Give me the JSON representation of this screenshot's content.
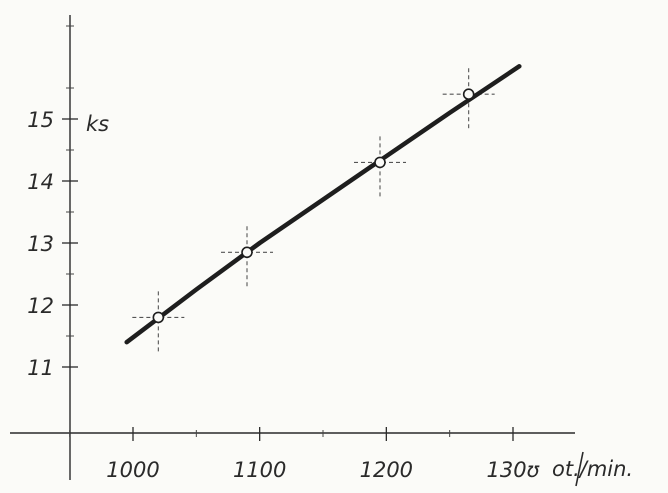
{
  "chart_data": {
    "type": "line",
    "title": "",
    "xlabel": "ot./min.",
    "ylabel": "ks",
    "x_ticks": [
      "1000",
      "1100",
      "1200",
      "130ʊ"
    ],
    "y_ticks": [
      "11",
      "12",
      "13",
      "14",
      "15"
    ],
    "xlim": [
      940,
      1350
    ],
    "ylim": [
      10.0,
      17.0
    ],
    "grid": false,
    "legend": "none",
    "series": [
      {
        "points": [
          {
            "x": 1020,
            "y": 11.8
          },
          {
            "x": 1090,
            "y": 12.85
          },
          {
            "x": 1195,
            "y": 14.3
          },
          {
            "x": 1265,
            "y": 15.4
          }
        ],
        "fit": [
          {
            "x": 995,
            "y": 11.4
          },
          {
            "x": 1050,
            "y": 12.25
          },
          {
            "x": 1100,
            "y": 13.0
          },
          {
            "x": 1150,
            "y": 13.7
          },
          {
            "x": 1200,
            "y": 14.4
          },
          {
            "x": 1250,
            "y": 15.1
          },
          {
            "x": 1305,
            "y": 15.85
          }
        ]
      }
    ],
    "colors": {
      "ink": "#1e1e1e",
      "paper": "#fbfbf8"
    }
  }
}
